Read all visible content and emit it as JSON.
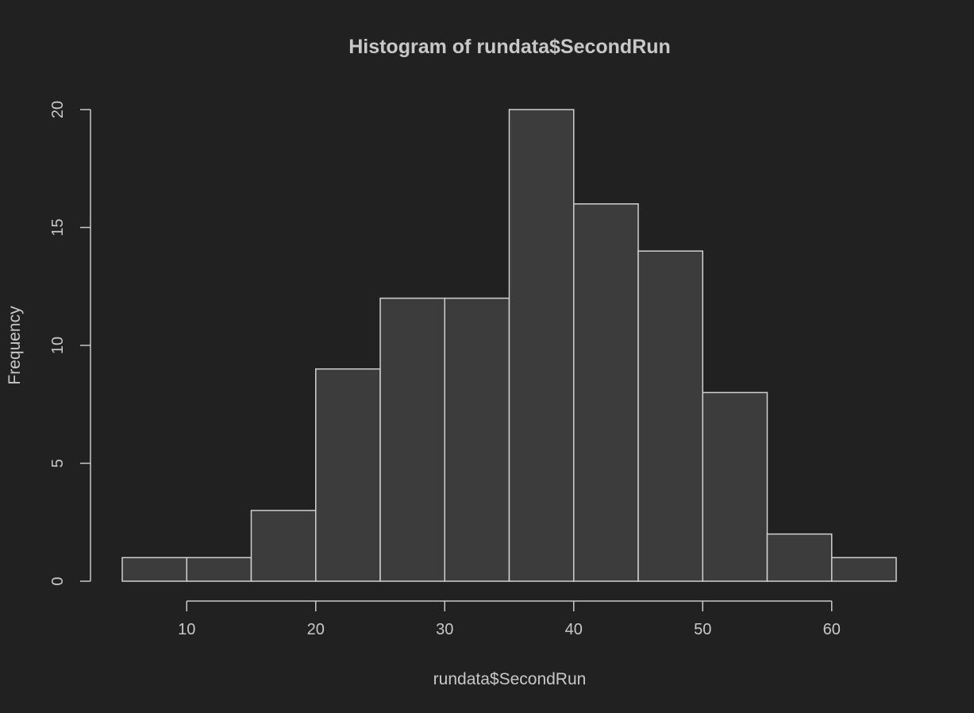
{
  "chart_data": {
    "type": "bar",
    "title": "Histogram of rundata$SecondRun",
    "xlabel": "rundata$SecondRun",
    "ylabel": "Frequency",
    "bins": [
      {
        "start": 5,
        "end": 10,
        "count": 1
      },
      {
        "start": 10,
        "end": 15,
        "count": 1
      },
      {
        "start": 15,
        "end": 20,
        "count": 3
      },
      {
        "start": 20,
        "end": 25,
        "count": 9
      },
      {
        "start": 25,
        "end": 30,
        "count": 12
      },
      {
        "start": 30,
        "end": 35,
        "count": 12
      },
      {
        "start": 35,
        "end": 40,
        "count": 20
      },
      {
        "start": 40,
        "end": 45,
        "count": 16
      },
      {
        "start": 45,
        "end": 50,
        "count": 14
      },
      {
        "start": 50,
        "end": 55,
        "count": 8
      },
      {
        "start": 55,
        "end": 60,
        "count": 2
      },
      {
        "start": 60,
        "end": 65,
        "count": 1
      }
    ],
    "xlim": [
      5,
      65
    ],
    "ylim": [
      0,
      20
    ],
    "x_ticks": [
      10,
      20,
      30,
      40,
      50,
      60
    ],
    "y_ticks": [
      0,
      5,
      10,
      15,
      20
    ],
    "grid": false,
    "background_color": "#212121",
    "bar_fill_color": "#3c3c3c",
    "bar_edge_color": "#d0d0d0",
    "text_color": "#c8c8c8"
  }
}
